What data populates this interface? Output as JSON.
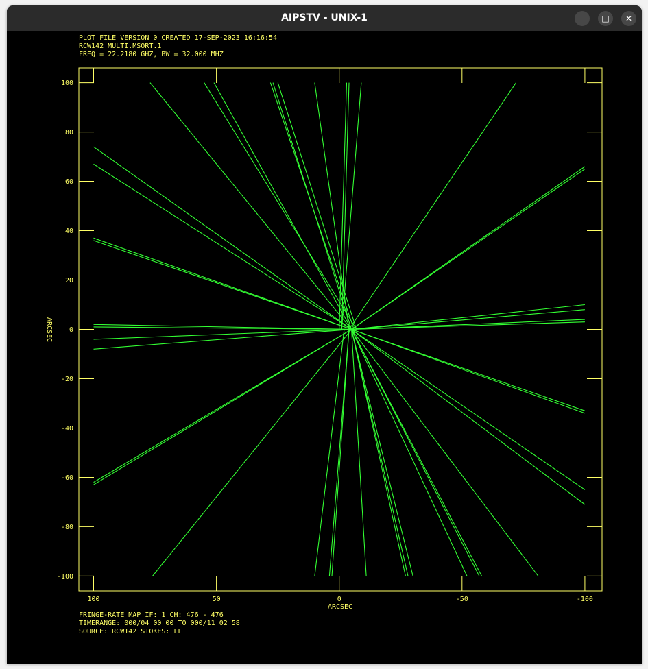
{
  "window": {
    "title": "AIPSTV - UNIX-1",
    "minimize_glyph": "–",
    "maximize_glyph": "□",
    "close_glyph": "✕"
  },
  "colors": {
    "background": "#000000",
    "text": "#ffff66",
    "frame": "#ffff66",
    "lines": "#33ff33"
  },
  "header_lines": [
    "PLOT FILE VERSION 0  CREATED 17-SEP-2023 16:16:54",
    "RCW142  MULTI.MSORT.1",
    "FREQ = 22.2180 GHZ, BW = 32.000 MHZ"
  ],
  "footer_lines": [
    "FRINGE-RATE MAP  IF: 1  CH: 476 - 476",
    "TIMERANGE: 000/04 00 00 TO 000/11 02 58",
    "SOURCE: RCW142    STOKES: LL"
  ],
  "chart_data": {
    "type": "line",
    "xlabel": "ARCSEC",
    "ylabel": "ARCSEC",
    "xlim": [
      106,
      -107
    ],
    "ylim": [
      -106,
      106
    ],
    "xticks": [
      100,
      50,
      0,
      -50,
      -100
    ],
    "yticks": [
      100,
      80,
      60,
      40,
      20,
      0,
      -20,
      -40,
      -60,
      -80,
      -100
    ],
    "grid": false,
    "segments": [
      [
        [
          77,
          100
        ],
        [
          -5,
          0
        ]
      ],
      [
        [
          55,
          100
        ],
        [
          -7,
          0
        ]
      ],
      [
        [
          51,
          100
        ],
        [
          -5,
          0
        ]
      ],
      [
        [
          28,
          100
        ],
        [
          -6,
          0
        ]
      ],
      [
        [
          27,
          100
        ],
        [
          -5,
          0
        ]
      ],
      [
        [
          25,
          100
        ],
        [
          -7,
          0
        ]
      ],
      [
        [
          10,
          100
        ],
        [
          -4,
          0
        ]
      ],
      [
        [
          -3,
          100
        ],
        [
          0,
          0
        ]
      ],
      [
        [
          -4,
          100
        ],
        [
          -1,
          0
        ]
      ],
      [
        [
          -9,
          100
        ],
        [
          -1,
          0
        ]
      ],
      [
        [
          -72,
          100
        ],
        [
          -4,
          0
        ]
      ],
      [
        [
          100,
          74
        ],
        [
          -5,
          0
        ]
      ],
      [
        [
          100,
          67
        ],
        [
          -5,
          0
        ]
      ],
      [
        [
          100,
          37
        ],
        [
          -5,
          0
        ]
      ],
      [
        [
          100,
          36
        ],
        [
          -5,
          0
        ]
      ],
      [
        [
          100,
          2
        ],
        [
          -5,
          0
        ]
      ],
      [
        [
          100,
          1
        ],
        [
          -5,
          0
        ]
      ],
      [
        [
          100,
          -4
        ],
        [
          -5,
          0
        ]
      ],
      [
        [
          100,
          -8
        ],
        [
          -5,
          0
        ]
      ],
      [
        [
          100,
          -62
        ],
        [
          -5,
          0
        ]
      ],
      [
        [
          100,
          -63
        ],
        [
          -5,
          0
        ]
      ],
      [
        [
          76,
          -100
        ],
        [
          -5,
          0
        ]
      ],
      [
        [
          -100,
          66
        ],
        [
          -5,
          0
        ]
      ],
      [
        [
          -100,
          65
        ],
        [
          -5,
          0
        ]
      ],
      [
        [
          -100,
          10
        ],
        [
          -5,
          0
        ]
      ],
      [
        [
          -100,
          8
        ],
        [
          -5,
          0
        ]
      ],
      [
        [
          -100,
          4
        ],
        [
          -5,
          0
        ]
      ],
      [
        [
          -100,
          3
        ],
        [
          -5,
          0
        ]
      ],
      [
        [
          -100,
          -33
        ],
        [
          -5,
          0
        ]
      ],
      [
        [
          -100,
          -34
        ],
        [
          -5,
          0
        ]
      ],
      [
        [
          -100,
          -65
        ],
        [
          -5,
          0
        ]
      ],
      [
        [
          -100,
          -71
        ],
        [
          -5,
          0
        ]
      ],
      [
        [
          10,
          -100
        ],
        [
          -2,
          0
        ]
      ],
      [
        [
          4,
          -100
        ],
        [
          -4,
          0
        ]
      ],
      [
        [
          3,
          -100
        ],
        [
          -4,
          0
        ]
      ],
      [
        [
          -11,
          -100
        ],
        [
          -5,
          0
        ]
      ],
      [
        [
          -27,
          -100
        ],
        [
          -5,
          0
        ]
      ],
      [
        [
          -28,
          -100
        ],
        [
          -5,
          0
        ]
      ],
      [
        [
          -30,
          -100
        ],
        [
          -5,
          0
        ]
      ],
      [
        [
          -52,
          -100
        ],
        [
          -5,
          0
        ]
      ],
      [
        [
          -57,
          -100
        ],
        [
          -5,
          0
        ]
      ],
      [
        [
          -58,
          -100
        ],
        [
          -5,
          0
        ]
      ],
      [
        [
          -81,
          -100
        ],
        [
          -5,
          0
        ]
      ]
    ]
  }
}
